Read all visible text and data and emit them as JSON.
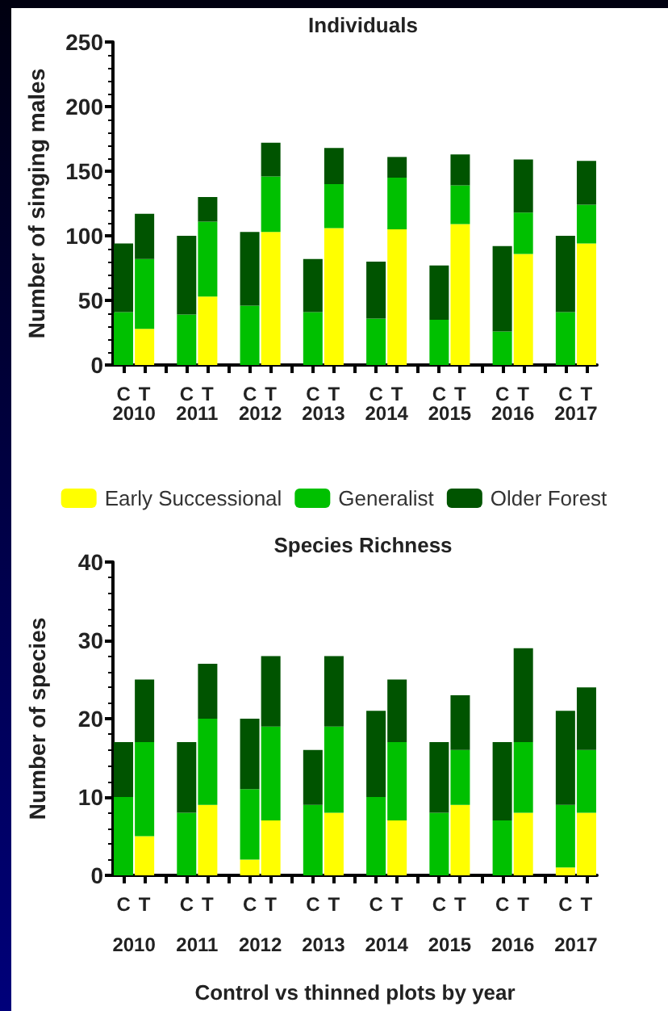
{
  "chart_data": [
    {
      "type": "bar",
      "title": "Individuals",
      "ylabel": "Number of singing males",
      "stacked": true,
      "legend": "bottom",
      "grid": false,
      "categories": [
        "C",
        "T",
        null,
        "C",
        "T",
        null,
        "C",
        "T",
        null,
        "C",
        "T",
        null,
        "C",
        "T",
        null,
        "C",
        "T",
        null,
        "C",
        "T",
        null,
        "C",
        "T"
      ],
      "ylim": [
        0,
        250
      ],
      "yticks": [
        0,
        50,
        100,
        150,
        200,
        250
      ],
      "annotations": [
        "2010",
        "2011",
        "2012",
        "2013",
        "2014",
        "2015",
        "2016",
        "2017"
      ],
      "series": [
        {
          "name": "Early Successional",
          "color": "#ffff00",
          "values": [
            0,
            28,
            null,
            0,
            53,
            null,
            0,
            103,
            null,
            0,
            106,
            null,
            0,
            105,
            null,
            0,
            109,
            null,
            0,
            86,
            null,
            0,
            94
          ]
        },
        {
          "name": "Generalist",
          "color": "#00c000",
          "values": [
            41,
            54,
            null,
            39,
            58,
            null,
            46,
            43,
            null,
            41,
            34,
            null,
            36,
            40,
            null,
            35,
            30,
            null,
            26,
            32,
            null,
            41,
            30
          ]
        },
        {
          "name": "Older Forest",
          "color": "#005400",
          "values": [
            53,
            35,
            null,
            61,
            19,
            null,
            57,
            26,
            null,
            41,
            28,
            null,
            44,
            16,
            null,
            42,
            24,
            null,
            66,
            41,
            null,
            59,
            34
          ]
        }
      ]
    },
    {
      "type": "bar",
      "title": "Species Richness",
      "ylabel": "Number of species",
      "xlabel": "Control vs thinned plots by year",
      "stacked": true,
      "grid": false,
      "categories": [
        "C",
        "T",
        null,
        "C",
        "T",
        null,
        "C",
        "T",
        null,
        "C",
        "T",
        null,
        "C",
        "T",
        null,
        "C",
        "T",
        null,
        "C",
        "T",
        null,
        "C",
        "T"
      ],
      "ylim": [
        0,
        40
      ],
      "yticks": [
        0,
        10,
        20,
        30,
        40
      ],
      "annotations": [
        "2010",
        "2011",
        "2012",
        "2013",
        "2014",
        "2015",
        "2016",
        "2017"
      ],
      "series": [
        {
          "color": "#ffff00",
          "values": [
            0,
            5,
            null,
            0,
            9,
            null,
            2,
            7,
            null,
            0,
            8,
            null,
            0,
            7,
            null,
            0,
            9,
            null,
            0,
            8,
            null,
            1,
            8
          ]
        },
        {
          "color": "#00c000",
          "values": [
            10,
            12,
            null,
            8,
            11,
            null,
            9,
            12,
            null,
            9,
            11,
            null,
            10,
            10,
            null,
            8,
            7,
            null,
            7,
            9,
            null,
            8,
            8
          ]
        },
        {
          "color": "#005400",
          "values": [
            7,
            8,
            null,
            9,
            7,
            null,
            9,
            9,
            null,
            7,
            9,
            null,
            11,
            8,
            null,
            9,
            7,
            null,
            10,
            12,
            null,
            12,
            8
          ]
        }
      ]
    }
  ]
}
